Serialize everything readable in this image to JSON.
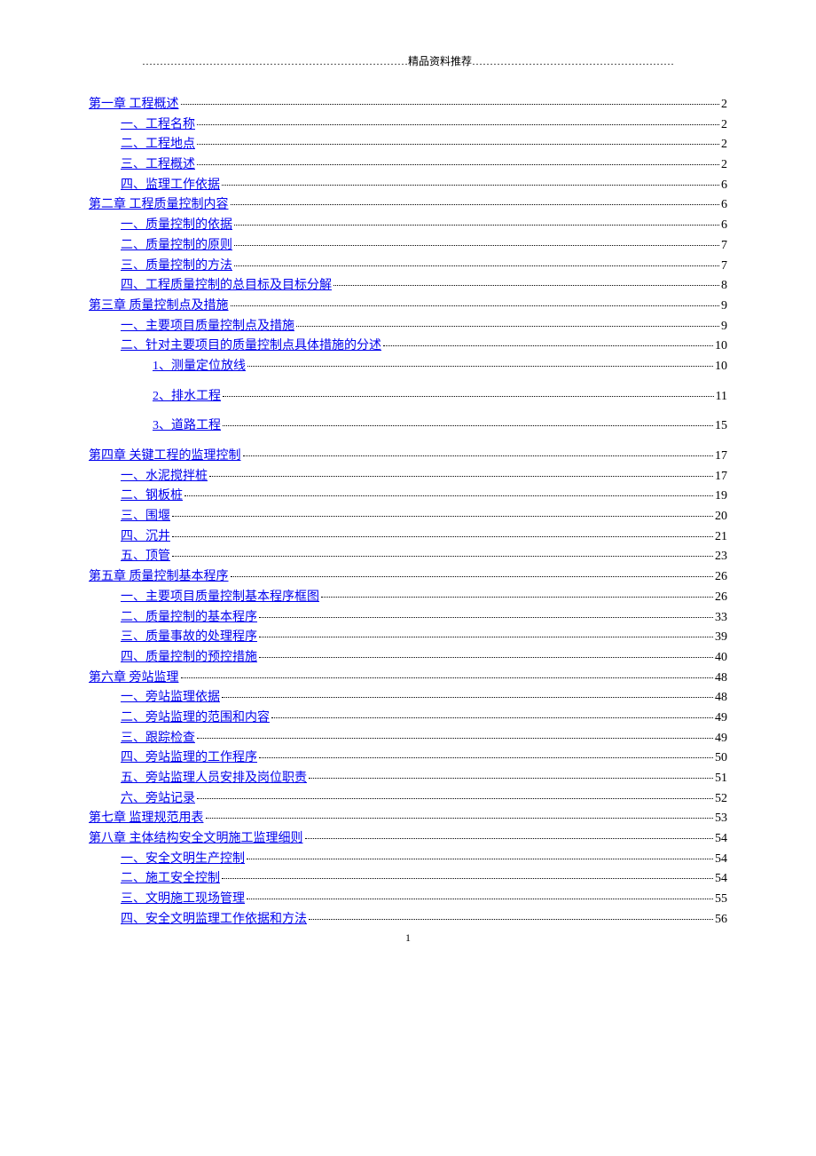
{
  "header": "…………………………………………………………………精品资料推荐…………………………………………………",
  "page_number": "1",
  "link_color": "#0000ee",
  "text_color": "#000000",
  "font_pt": 14,
  "toc": [
    {
      "level": 0,
      "label": "第一章   工程概述",
      "page": "2"
    },
    {
      "level": 1,
      "label": "一、工程名称",
      "page": "2"
    },
    {
      "level": 1,
      "label": "二、工程地点",
      "page": "2"
    },
    {
      "level": 1,
      "label": "三、工程概述",
      "page": "2"
    },
    {
      "level": 1,
      "label": "四、监理工作依据",
      "page": "6"
    },
    {
      "level": 0,
      "label": "第二章   工程质量控制内容",
      "page": "6"
    },
    {
      "level": 1,
      "label": "一、质量控制的依据",
      "page": "6"
    },
    {
      "level": 1,
      "label": "二、质量控制的原则",
      "page": "7"
    },
    {
      "level": 1,
      "label": "三、质量控制的方法",
      "page": "7"
    },
    {
      "level": 1,
      "label": "四、工程质量控制的总目标及目标分解",
      "page": "8"
    },
    {
      "level": 0,
      "label": "第三章    质量控制点及措施",
      "page": "9"
    },
    {
      "level": 1,
      "label": "一、主要项目质量控制点及措施",
      "page": "9"
    },
    {
      "level": 1,
      "label": "二、针对主要项目的质量控制点具体措施的分述",
      "page": "10"
    },
    {
      "level": 2,
      "label": "1、测量定位放线 ",
      "page": "10",
      "spaced": true
    },
    {
      "level": 2,
      "label": "2、排水工程 ",
      "page": "11",
      "spaced": true
    },
    {
      "level": 2,
      "label": "3、道路工程 ",
      "page": "15",
      "spaced": true
    },
    {
      "level": 0,
      "label": "第四章    关键工程的监理控制",
      "page": "17"
    },
    {
      "level": 1,
      "label": "一、水泥搅拌桩",
      "page": "17"
    },
    {
      "level": 1,
      "label": "二、钢板桩",
      "page": "19"
    },
    {
      "level": 1,
      "label": "三、围堰",
      "page": "20"
    },
    {
      "level": 1,
      "label": "四、沉井",
      "page": "21"
    },
    {
      "level": 1,
      "label": "五、顶管",
      "page": "23"
    },
    {
      "level": 0,
      "label": "第五章    质量控制基本程序",
      "page": "26"
    },
    {
      "level": 1,
      "label": "一、主要项目质量控制基本程序框图",
      "page": "26"
    },
    {
      "level": 1,
      "label": "二、质量控制的基本程序",
      "page": "33"
    },
    {
      "level": 1,
      "label": "三、质量事故的处理程序",
      "page": "39"
    },
    {
      "level": 1,
      "label": "四、质量控制的预控措施",
      "page": "40"
    },
    {
      "level": 0,
      "label": "第六章    旁站监理",
      "page": "48"
    },
    {
      "level": 1,
      "label": "一、旁站监理依据",
      "page": "48"
    },
    {
      "level": 1,
      "label": "二、旁站监理的范围和内容",
      "page": "49"
    },
    {
      "level": 1,
      "label": "三、跟踪检查",
      "page": "49"
    },
    {
      "level": 1,
      "label": "四、旁站监理的工作程序",
      "page": "50"
    },
    {
      "level": 1,
      "label": "五、旁站监理人员安排及岗位职责",
      "page": "51"
    },
    {
      "level": 1,
      "label": "六、旁站记录",
      "page": "52"
    },
    {
      "level": 0,
      "label": "第七章   监理规范用表",
      "page": "53"
    },
    {
      "level": 0,
      "label": "第八章  主体结构安全文明施工监理细则",
      "page": "54"
    },
    {
      "level": 1,
      "label": "一、安全文明生产控制",
      "page": "54"
    },
    {
      "level": 1,
      "label": "二、施工安全控制",
      "page": "54"
    },
    {
      "level": 1,
      "label": "三、文明施工现场管理",
      "page": "55"
    },
    {
      "level": 1,
      "label": "四、安全文明监理工作依据和方法",
      "page": "56"
    }
  ]
}
